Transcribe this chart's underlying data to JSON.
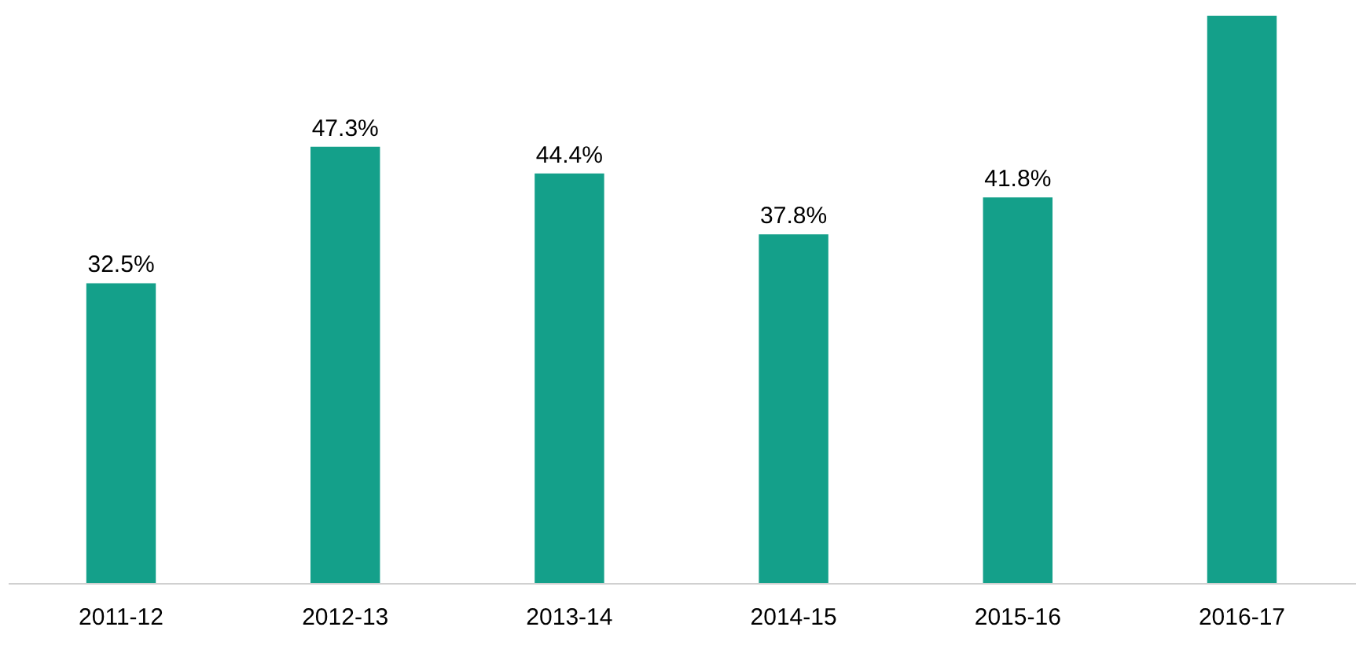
{
  "chart_data": {
    "type": "bar",
    "categories": [
      "2011-12",
      "2012-13",
      "2013-14",
      "2014-15",
      "2015-16",
      "2016-17"
    ],
    "values": [
      32.5,
      47.3,
      44.4,
      37.8,
      41.8,
      61.5
    ],
    "value_labels": [
      "32.5%",
      "47.3%",
      "44.4%",
      "37.8%",
      "41.8%",
      null
    ],
    "color": "#14a08a",
    "grid": false
  }
}
